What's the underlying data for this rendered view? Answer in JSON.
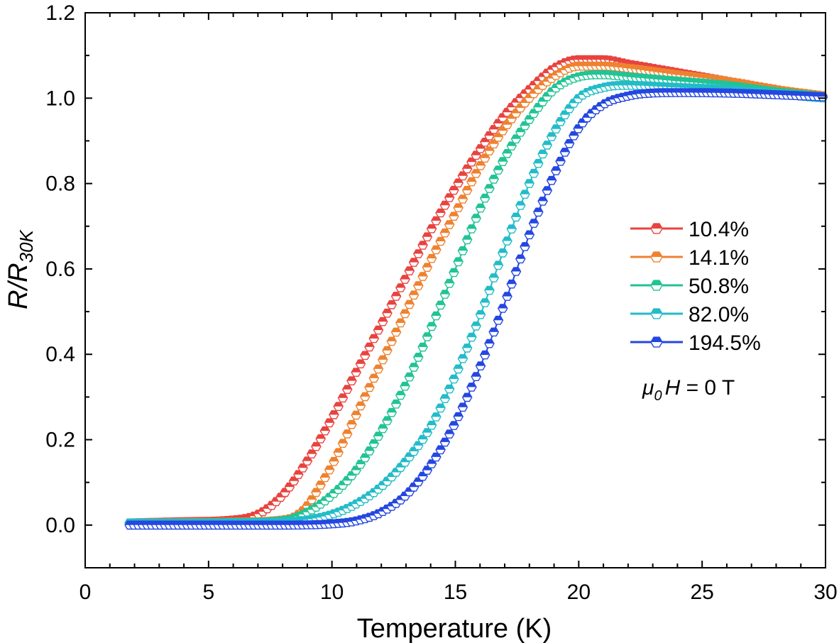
{
  "chart_data": {
    "type": "line",
    "xlabel": "Temperature (K)",
    "ylabel": {
      "main": "R/R",
      "sub": "30K"
    },
    "xlim": [
      0,
      30
    ],
    "ylim": [
      -0.1,
      1.2
    ],
    "xticks": [
      0,
      5,
      10,
      15,
      20,
      25,
      30
    ],
    "yticks": [
      0.0,
      0.2,
      0.4,
      0.6,
      0.8,
      1.0,
      1.2
    ],
    "xtick_labels": [
      "0",
      "5",
      "10",
      "15",
      "20",
      "25",
      "30"
    ],
    "ytick_labels": [
      "0.0",
      "0.2",
      "0.4",
      "0.6",
      "0.8",
      "1.0",
      "1.2"
    ],
    "grid": false,
    "legend_position": "right-middle",
    "marker": "hexagon, half-filled",
    "annotation": {
      "mu": "μ",
      "sub": "0",
      "rest": "H = 0 T"
    },
    "series": [
      {
        "name": "10.4%",
        "color": "#e8433f",
        "x": [
          1.8,
          4,
          6,
          7,
          8,
          9,
          10,
          11,
          12,
          13,
          14,
          15,
          16,
          17,
          18,
          19,
          20,
          21,
          22,
          24,
          26,
          28,
          30
        ],
        "y": [
          0.005,
          0.008,
          0.012,
          0.025,
          0.07,
          0.15,
          0.25,
          0.36,
          0.47,
          0.58,
          0.69,
          0.79,
          0.88,
          0.96,
          1.02,
          1.07,
          1.09,
          1.09,
          1.08,
          1.06,
          1.04,
          1.02,
          1.0
        ]
      },
      {
        "name": "14.1%",
        "color": "#ee8230",
        "x": [
          1.8,
          4,
          6,
          8,
          8.5,
          9,
          9.5,
          10,
          11,
          12,
          13,
          14,
          15,
          16,
          17,
          18,
          19,
          20,
          21,
          22,
          24,
          26,
          28,
          30
        ],
        "y": [
          0.005,
          0.006,
          0.007,
          0.012,
          0.02,
          0.045,
          0.09,
          0.14,
          0.26,
          0.38,
          0.5,
          0.62,
          0.73,
          0.84,
          0.93,
          1.0,
          1.05,
          1.075,
          1.075,
          1.07,
          1.055,
          1.04,
          1.02,
          1.005
        ]
      },
      {
        "name": "50.8%",
        "color": "#22c394",
        "x": [
          1.8,
          4,
          6,
          8,
          9,
          10,
          11,
          12,
          13,
          14,
          15,
          16,
          17,
          18,
          19,
          20,
          21,
          22,
          24,
          26,
          28,
          30
        ],
        "y": [
          0.005,
          0.005,
          0.006,
          0.01,
          0.03,
          0.07,
          0.13,
          0.22,
          0.33,
          0.46,
          0.6,
          0.74,
          0.86,
          0.95,
          1.02,
          1.05,
          1.055,
          1.05,
          1.04,
          1.03,
          1.015,
          1.003
        ]
      },
      {
        "name": "82.0%",
        "color": "#22bcc8",
        "x": [
          1.8,
          4,
          6,
          8,
          9,
          10,
          11,
          12,
          13,
          14,
          15,
          16,
          17,
          18,
          19,
          20,
          21,
          22,
          24,
          26,
          28,
          30
        ],
        "y": [
          0.005,
          0.005,
          0.005,
          0.007,
          0.012,
          0.025,
          0.05,
          0.09,
          0.15,
          0.23,
          0.35,
          0.49,
          0.65,
          0.8,
          0.92,
          1.0,
          1.025,
          1.03,
          1.025,
          1.02,
          1.01,
          1.0
        ]
      },
      {
        "name": "194.5%",
        "color": "#2447e0",
        "x": [
          1.8,
          4,
          6,
          8,
          10,
          11,
          12,
          13,
          14,
          15,
          16,
          17,
          18,
          19,
          20,
          21,
          22,
          23,
          24,
          26,
          28,
          30
        ],
        "y": [
          0.0,
          0.0,
          0.0,
          0.0,
          0.003,
          0.01,
          0.03,
          0.07,
          0.14,
          0.24,
          0.37,
          0.52,
          0.68,
          0.82,
          0.93,
          0.985,
          1.005,
          1.012,
          1.013,
          1.012,
          1.008,
          1.003
        ]
      }
    ]
  }
}
